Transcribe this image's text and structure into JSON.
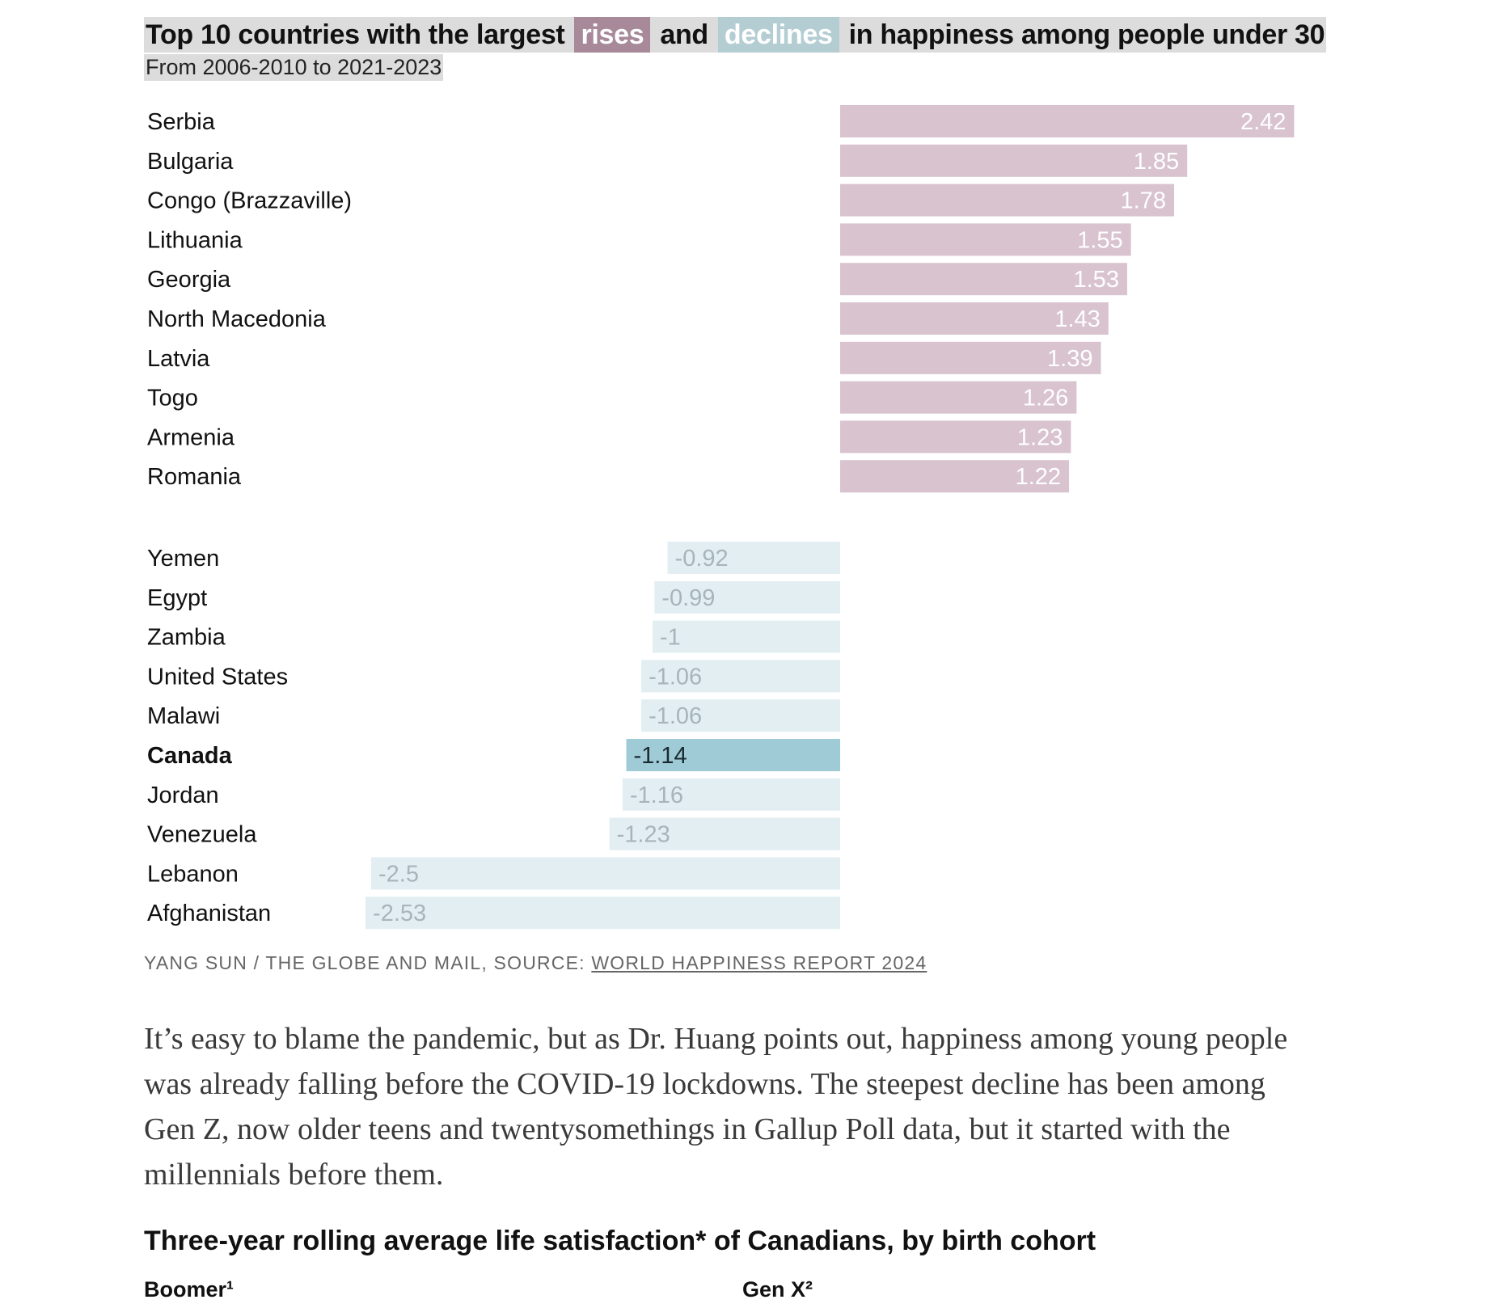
{
  "header": {
    "title_prefix": "Top 10 countries with the largest",
    "rises_tag": "rises",
    "and_word": "and",
    "declines_tag": "declines",
    "title_suffix": "in happiness among people under 30",
    "subtitle": "From 2006-2010 to 2021-2023"
  },
  "chart_data": {
    "type": "bar",
    "orientation": "horizontal",
    "title": "Top 10 countries with the largest rises and declines in happiness among people under 30",
    "subtitle": "From 2006-2010 to 2021-2023",
    "highlight": "Canada",
    "colors": {
      "rise": "#d8c3cf",
      "rise_label": "#ffffff",
      "decline": "#e2eef2",
      "decline_label": "#a7b4ba",
      "highlight": "#9ecbd6",
      "highlight_label": "#1a2a30"
    },
    "rises": [
      {
        "country": "Serbia",
        "value": 2.42
      },
      {
        "country": "Bulgaria",
        "value": 1.85
      },
      {
        "country": "Congo (Brazzaville)",
        "value": 1.78
      },
      {
        "country": "Lithuania",
        "value": 1.55
      },
      {
        "country": "Georgia",
        "value": 1.53
      },
      {
        "country": "North Macedonia",
        "value": 1.43
      },
      {
        "country": "Latvia",
        "value": 1.39
      },
      {
        "country": "Togo",
        "value": 1.26
      },
      {
        "country": "Armenia",
        "value": 1.23
      },
      {
        "country": "Romania",
        "value": 1.22
      }
    ],
    "declines": [
      {
        "country": "Yemen",
        "value": -0.92
      },
      {
        "country": "Egypt",
        "value": -0.99
      },
      {
        "country": "Zambia",
        "value": -1
      },
      {
        "country": "United States",
        "value": -1.06
      },
      {
        "country": "Malawi",
        "value": -1.06
      },
      {
        "country": "Canada",
        "value": -1.14
      },
      {
        "country": "Jordan",
        "value": -1.16
      },
      {
        "country": "Venezuela",
        "value": -1.23
      },
      {
        "country": "Lebanon",
        "value": -2.5
      },
      {
        "country": "Afghanistan",
        "value": -2.53
      }
    ]
  },
  "credit": {
    "prefix": "YANG SUN / THE GLOBE AND MAIL, SOURCE: ",
    "source_link": "WORLD HAPPINESS REPORT 2024"
  },
  "article": {
    "paragraph": "It’s easy to blame the pandemic, but as Dr. Huang points out, happiness among young people was already falling before the COVID-19 lockdowns. The steepest decline has been among Gen Z, now older teens and twentysomethings in Gallup Poll data, but it started with the millennials before them."
  },
  "next_chart": {
    "title": "Three-year rolling average life satisfaction* of Canadians, by birth cohort",
    "cohort_left": "Boomer¹",
    "cohort_right": "Gen X²"
  }
}
